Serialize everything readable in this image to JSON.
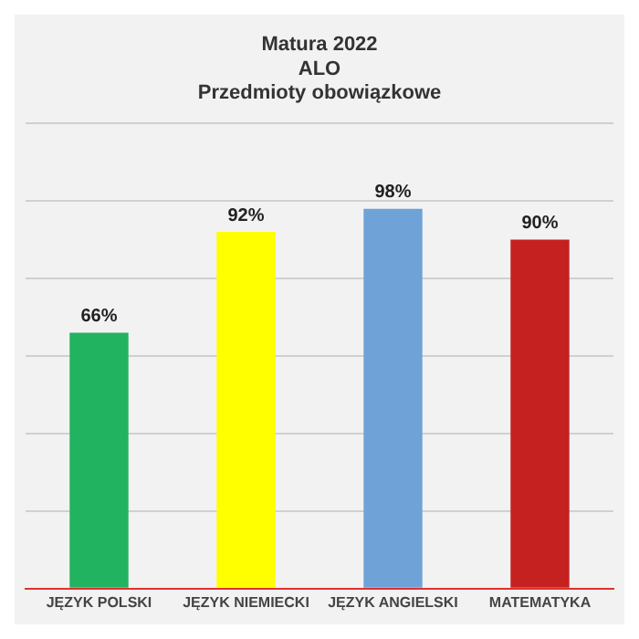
{
  "chart_data": {
    "type": "bar",
    "title": "Matura 2022\nALO\nPrzedmioty obowiązkowe",
    "categories": [
      "JĘZYK POLSKI",
      "JĘZYK NIEMIECKI",
      "JĘZYK ANGIELSKI",
      "MATEMATYKA"
    ],
    "values": [
      66,
      92,
      98,
      90
    ],
    "colors": [
      "#21b35f",
      "#ffff00",
      "#6fa3d8",
      "#c42120"
    ],
    "value_labels": [
      "66%",
      "92%",
      "98%",
      "90%"
    ],
    "ylim": [
      0,
      120
    ],
    "yticks": [
      {
        "value": 0,
        "label": null
      },
      {
        "value": 20,
        "label": null
      },
      {
        "value": 40,
        "label": null
      },
      {
        "value": 60,
        "label": null
      },
      {
        "value": 80,
        "label": null
      },
      {
        "value": 100,
        "label": null
      },
      {
        "value": 120,
        "label": null
      }
    ],
    "grid": "y",
    "tick_labels": "x",
    "legend": false
  }
}
